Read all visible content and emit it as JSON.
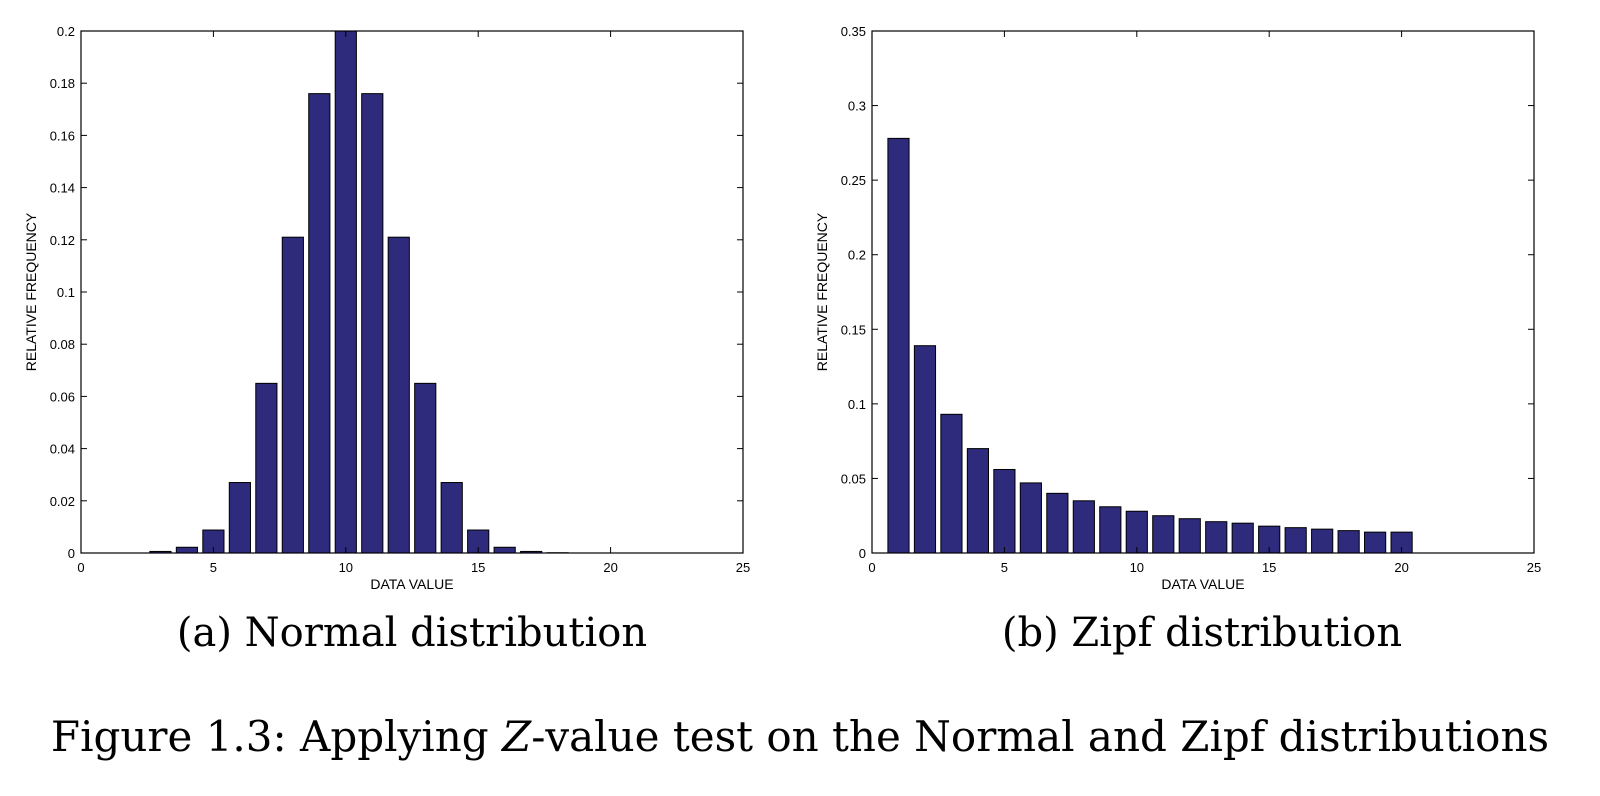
{
  "chart_data": [
    {
      "type": "bar",
      "title": "",
      "xlabel": "DATA VALUE",
      "ylabel": "RELATIVE FREQUENCY",
      "xlim": [
        0,
        25
      ],
      "ylim": [
        0,
        0.2
      ],
      "xticks": [
        0,
        5,
        10,
        15,
        20,
        25
      ],
      "yticks": [
        0,
        0.02,
        0.04,
        0.06,
        0.08,
        0.1,
        0.12,
        0.14,
        0.16,
        0.18,
        0.2
      ],
      "x": [
        1,
        2,
        3,
        4,
        5,
        6,
        7,
        8,
        9,
        10,
        11,
        12,
        13,
        14,
        15,
        16,
        17,
        18,
        19,
        20
      ],
      "values": [
        0.0,
        0.0,
        0.0006,
        0.0022,
        0.0088,
        0.027,
        0.065,
        0.121,
        0.176,
        0.2,
        0.176,
        0.121,
        0.065,
        0.027,
        0.0088,
        0.0022,
        0.0006,
        0.0001,
        0.0,
        0.0
      ],
      "bar_color": "#2e2a7c",
      "grid": false
    },
    {
      "type": "bar",
      "title": "",
      "xlabel": "DATA VALUE",
      "ylabel": "RELATIVE FREQUENCY",
      "xlim": [
        0,
        25
      ],
      "ylim": [
        0,
        0.35
      ],
      "xticks": [
        0,
        5,
        10,
        15,
        20,
        25
      ],
      "yticks": [
        0,
        0.05,
        0.1,
        0.15,
        0.2,
        0.25,
        0.3,
        0.35
      ],
      "x": [
        1,
        2,
        3,
        4,
        5,
        6,
        7,
        8,
        9,
        10,
        11,
        12,
        13,
        14,
        15,
        16,
        17,
        18,
        19,
        20
      ],
      "values": [
        0.278,
        0.139,
        0.093,
        0.07,
        0.056,
        0.047,
        0.04,
        0.035,
        0.031,
        0.028,
        0.025,
        0.023,
        0.021,
        0.02,
        0.018,
        0.017,
        0.016,
        0.015,
        0.014,
        0.014
      ],
      "bar_color": "#2e2a7c",
      "grid": false
    }
  ],
  "subcaptions": {
    "a": "(a) Normal distribution",
    "b": "(b) Zipf distribution"
  },
  "caption": {
    "prefix": "Figure 1.3: Applying ",
    "variable": "Z",
    "suffix": "-value test on the Normal and Zipf distributions"
  }
}
